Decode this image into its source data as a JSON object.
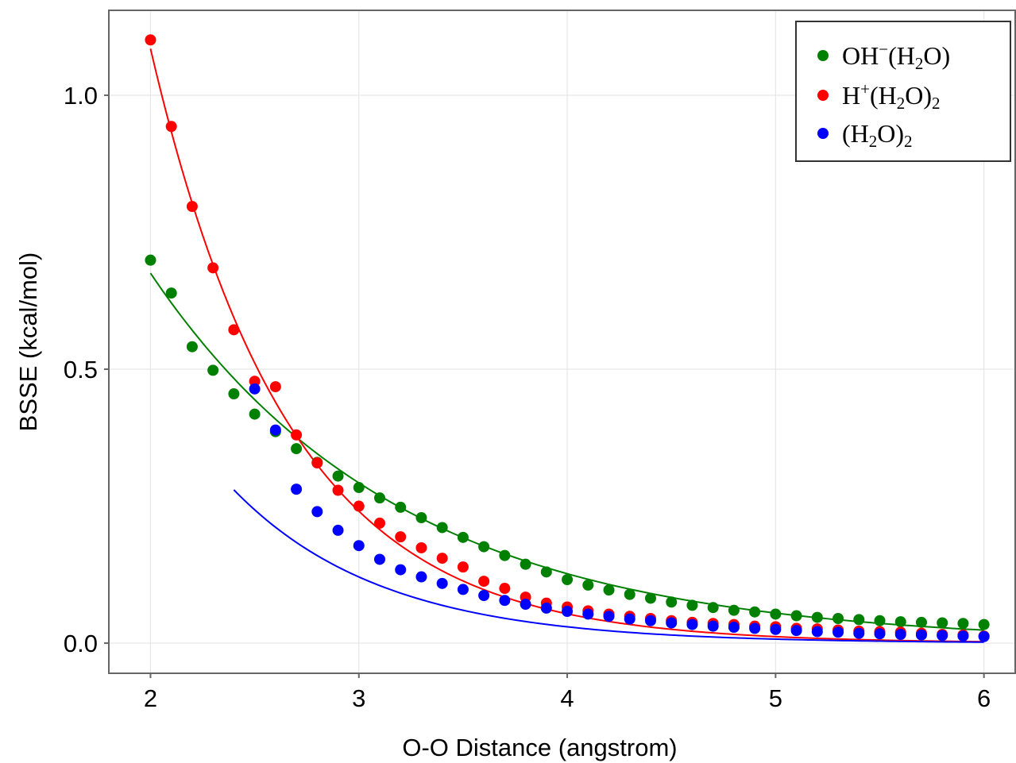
{
  "chart_data": {
    "type": "scatter",
    "title": "",
    "xlabel": "O-O Distance (angstrom)",
    "ylabel": "BSSE (kcal/mol)",
    "xlim": [
      1.8,
      6.15
    ],
    "ylim": [
      -0.055,
      1.155
    ],
    "xticks": [
      2,
      3,
      4,
      5,
      6
    ],
    "xtick_labels": [
      "2",
      "3",
      "4",
      "5",
      "6"
    ],
    "yticks": [
      0.0,
      0.5,
      1.0
    ],
    "ytick_labels": [
      "0.0",
      "0.5",
      "1.0"
    ],
    "grid": true,
    "legend_position": "top-right",
    "series": [
      {
        "name": "OH⁻(H₂O)",
        "legend_parts": {
          "base": "OH",
          "sup": "−",
          "rest": "(H",
          "sub": "2",
          "tail": "O)"
        },
        "color": "#008000",
        "x": [
          2.0,
          2.1,
          2.2,
          2.3,
          2.4,
          2.5,
          2.6,
          2.7,
          2.8,
          2.9,
          3.0,
          3.1,
          3.2,
          3.3,
          3.4,
          3.5,
          3.6,
          3.7,
          3.8,
          3.9,
          4.0,
          4.1,
          4.2,
          4.3,
          4.4,
          4.5,
          4.6,
          4.7,
          4.8,
          4.9,
          5.0,
          5.1,
          5.2,
          5.3,
          5.4,
          5.5,
          5.6,
          5.7,
          5.8,
          5.9,
          6.0
        ],
        "y": [
          0.699,
          0.639,
          0.541,
          0.498,
          0.455,
          0.418,
          0.386,
          0.355,
          0.33,
          0.305,
          0.284,
          0.265,
          0.248,
          0.229,
          0.211,
          0.193,
          0.176,
          0.16,
          0.144,
          0.13,
          0.116,
          0.106,
          0.097,
          0.089,
          0.082,
          0.075,
          0.069,
          0.065,
          0.06,
          0.057,
          0.053,
          0.05,
          0.047,
          0.045,
          0.043,
          0.041,
          0.039,
          0.038,
          0.037,
          0.036,
          0.034
        ],
        "fit": {
          "x_start": 2.0,
          "x_end": 6.0,
          "a": 0.6752,
          "b": 0.8365
        }
      },
      {
        "name": "H⁺(H₂O)₂",
        "legend_parts": {
          "base": "H",
          "sup": "+",
          "rest": "(H",
          "sub": "2",
          "tail": "O)",
          "sub2": "2"
        },
        "color": "#ff0000",
        "x": [
          2.0,
          2.1,
          2.2,
          2.3,
          2.4,
          2.5,
          2.6,
          2.7,
          2.8,
          2.9,
          3.0,
          3.1,
          3.2,
          3.3,
          3.4,
          3.5,
          3.6,
          3.7,
          3.8,
          3.9,
          4.0,
          4.1,
          4.2,
          4.3,
          4.4,
          4.5,
          4.6,
          4.7,
          4.8,
          4.9,
          5.0,
          5.1,
          5.2,
          5.3,
          5.4,
          5.5,
          5.6,
          5.7,
          5.8,
          5.9,
          6.0
        ],
        "y": [
          1.101,
          0.943,
          0.797,
          0.685,
          0.572,
          0.478,
          0.468,
          0.38,
          0.329,
          0.279,
          0.25,
          0.219,
          0.194,
          0.174,
          0.155,
          0.139,
          0.113,
          0.1,
          0.084,
          0.073,
          0.066,
          0.059,
          0.053,
          0.049,
          0.045,
          0.041,
          0.038,
          0.036,
          0.034,
          0.031,
          0.03,
          0.027,
          0.026,
          0.024,
          0.022,
          0.021,
          0.02,
          0.018,
          0.016,
          0.015,
          0.013
        ],
        "fit": {
          "x_start": 2.0,
          "x_end": 6.0,
          "a": 1.085,
          "b": 1.505
        }
      },
      {
        "name": "(H₂O)₂",
        "legend_parts": {
          "base": "(H",
          "sub": "2",
          "tail": "O)",
          "sub2": "2"
        },
        "color": "#0000ff",
        "x": [
          2.5,
          2.6,
          2.7,
          2.8,
          2.9,
          3.0,
          3.1,
          3.2,
          3.3,
          3.4,
          3.5,
          3.6,
          3.7,
          3.8,
          3.9,
          4.0,
          4.1,
          4.2,
          4.3,
          4.4,
          4.5,
          4.6,
          4.7,
          4.8,
          4.9,
          5.0,
          5.1,
          5.2,
          5.3,
          5.4,
          5.5,
          5.6,
          5.7,
          5.8,
          5.9,
          6.0
        ],
        "y": [
          0.464,
          0.389,
          0.281,
          0.24,
          0.206,
          0.178,
          0.153,
          0.134,
          0.121,
          0.109,
          0.098,
          0.087,
          0.078,
          0.071,
          0.064,
          0.058,
          0.053,
          0.049,
          0.044,
          0.041,
          0.037,
          0.034,
          0.031,
          0.029,
          0.027,
          0.025,
          0.023,
          0.021,
          0.02,
          0.018,
          0.017,
          0.016,
          0.015,
          0.014,
          0.013,
          0.012
        ],
        "fit": {
          "x_start": 2.4,
          "x_end": 6.0,
          "a": 0.49,
          "b": 1.4
        }
      }
    ]
  }
}
